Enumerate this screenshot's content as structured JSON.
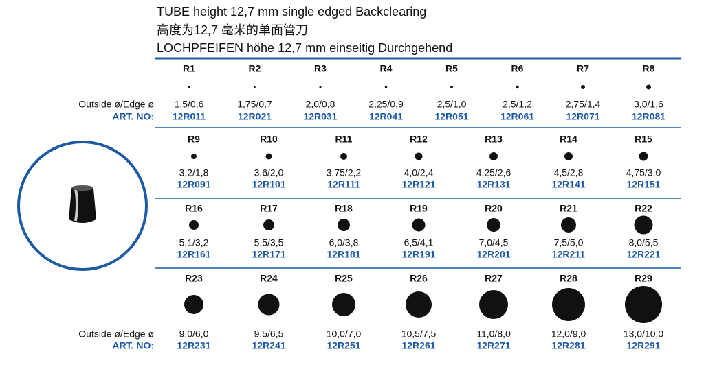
{
  "header": {
    "title_en": "TUBE height 12,7 mm single edged Backclearing",
    "title_zh": "高度为12,7 毫米的单面管刀",
    "title_de": "LOCHPFEIFEN höhe 12,7 mm einseitig Durchgehend"
  },
  "labels": {
    "outside": "Outside ø/Edge ø",
    "art": "ART. NO:"
  },
  "rows": [
    [
      {
        "name": "R1",
        "size": "1,5/0,6",
        "art": "12R011"
      },
      {
        "name": "R2",
        "size": "1,75/0,7",
        "art": "12R021"
      },
      {
        "name": "R3",
        "size": "2,0/0,8",
        "art": "12R031"
      },
      {
        "name": "R4",
        "size": "2,25/0,9",
        "art": "12R041"
      },
      {
        "name": "R5",
        "size": "2,5/1,0",
        "art": "12R051"
      },
      {
        "name": "R6",
        "size": "2,5/1,2",
        "art": "12R061"
      },
      {
        "name": "R7",
        "size": "2,75/1,4",
        "art": "12R071"
      },
      {
        "name": "R8",
        "size": "3,0/1,6",
        "art": "12R081"
      }
    ],
    [
      {
        "name": "R9",
        "size": "3,2/1,8",
        "art": "12R091"
      },
      {
        "name": "R10",
        "size": "3,6/2,0",
        "art": "12R101"
      },
      {
        "name": "R11",
        "size": "3,75/2,2",
        "art": "12R111"
      },
      {
        "name": "R12",
        "size": "4,0/2,4",
        "art": "12R121"
      },
      {
        "name": "R13",
        "size": "4,25/2,6",
        "art": "12R131"
      },
      {
        "name": "R14",
        "size": "4,5/2,8",
        "art": "12R141"
      },
      {
        "name": "R15",
        "size": "4,75/3,0",
        "art": "12R151"
      }
    ],
    [
      {
        "name": "R16",
        "size": "5,1/3,2",
        "art": "12R161"
      },
      {
        "name": "R17",
        "size": "5,5/3,5",
        "art": "12R171"
      },
      {
        "name": "R18",
        "size": "6,0/3,8",
        "art": "12R181"
      },
      {
        "name": "R19",
        "size": "6,5/4,1",
        "art": "12R191"
      },
      {
        "name": "R20",
        "size": "7,0/4,5",
        "art": "12R201"
      },
      {
        "name": "R21",
        "size": "7,5/5,0",
        "art": "12R211"
      },
      {
        "name": "R22",
        "size": "8,0/5,5",
        "art": "12R221"
      }
    ],
    [
      {
        "name": "R23",
        "size": "9,0/6,0",
        "art": "12R231"
      },
      {
        "name": "R24",
        "size": "9,5/6,5",
        "art": "12R241"
      },
      {
        "name": "R25",
        "size": "10,0/7,0",
        "art": "12R251"
      },
      {
        "name": "R26",
        "size": "10,5/7,5",
        "art": "12R261"
      },
      {
        "name": "R27",
        "size": "11,0/8,0",
        "art": "12R271"
      },
      {
        "name": "R28",
        "size": "12,0/9,0",
        "art": "12R281"
      },
      {
        "name": "R29",
        "size": "13,0/10,0",
        "art": "12R291"
      }
    ]
  ]
}
